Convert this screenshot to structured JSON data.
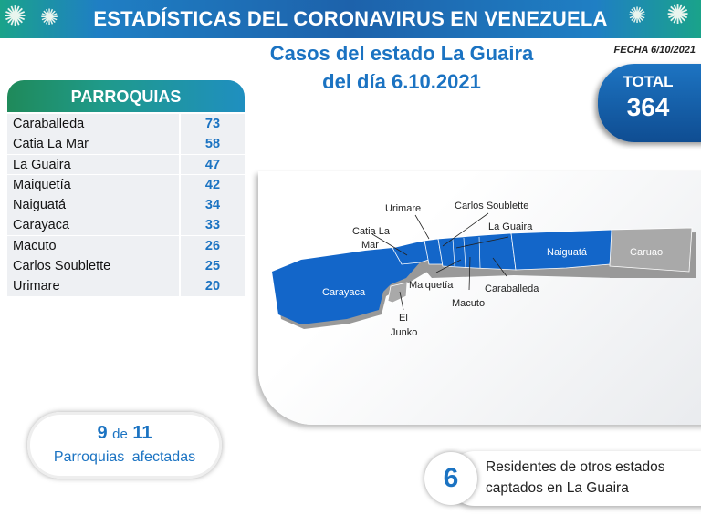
{
  "banner": {
    "title": "ESTADÍSTICAS DEL CORONAVIRUS EN VENEZUELA",
    "icon": "virus-icon"
  },
  "heading": {
    "line1": "Casos del estado La Guaira",
    "line2": "del día 6.10.2021"
  },
  "fecha": "FECHA 6/10/2021",
  "total": {
    "label": "TOTAL",
    "value": "364"
  },
  "parroquias": {
    "header": "PARROQUIAS",
    "rows": [
      {
        "name": "Caraballeda",
        "value": "73"
      },
      {
        "name": "Catia La Mar",
        "value": "58"
      },
      {
        "name": "La Guaira",
        "value": "47"
      },
      {
        "name": "Maiquetía",
        "value": "42"
      },
      {
        "name": "Naiguatá",
        "value": "34"
      },
      {
        "name": "Carayaca",
        "value": "33"
      },
      {
        "name": "Macuto",
        "value": "26"
      },
      {
        "name": "Carlos Soublette",
        "value": "25"
      },
      {
        "name": "Urimare",
        "value": "20"
      }
    ]
  },
  "map": {
    "colors": {
      "affected": "#1366c9",
      "unaffected": "#a9a9a9"
    },
    "labels": {
      "urimare": "Urimare",
      "carlos_soublette": "Carlos Soublette",
      "la_guaira": "La Guaira",
      "catia1": "Catia La",
      "catia2": "Mar",
      "naiguata": "Naiguatá",
      "caruao": "Caruao",
      "carayaca": "Carayaca",
      "maiquetia": "Maiquetía",
      "caraballeda": "Caraballeda",
      "macuto": "Macuto",
      "el": "El",
      "junko": "Junko"
    }
  },
  "affected": {
    "count": "9",
    "de": "de",
    "total": "11",
    "label": "Parroquias afectadas"
  },
  "residents": {
    "count": "6",
    "line1": "Residentes de otros estados",
    "line2": "captados en La Guaira"
  }
}
